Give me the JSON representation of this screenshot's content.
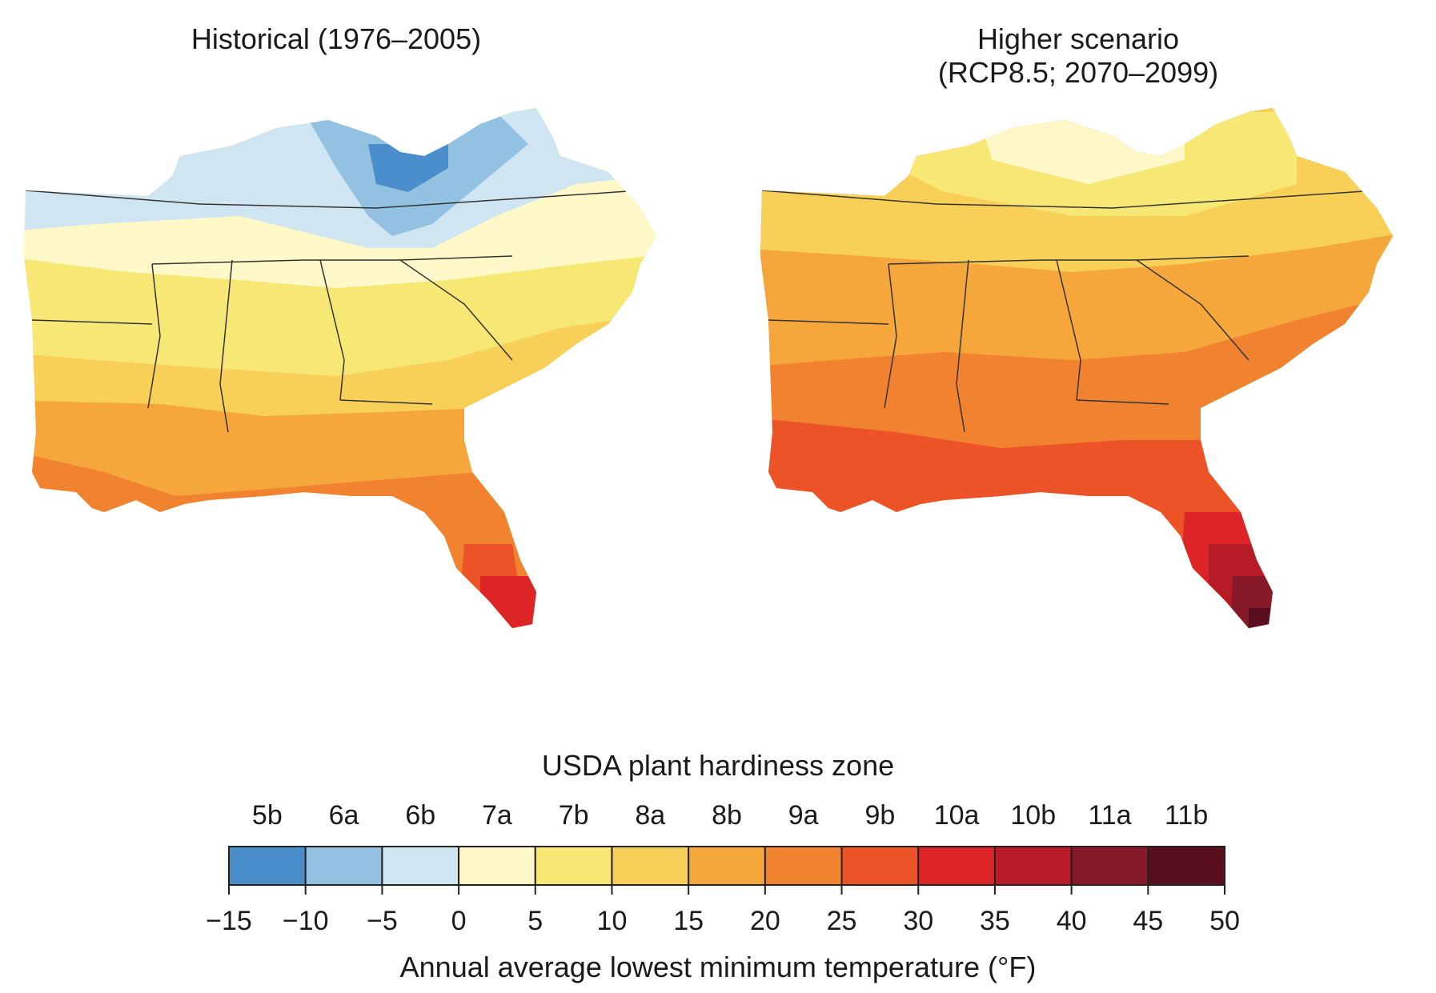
{
  "figure": {
    "left_panel_title": "Historical (1976–2005)",
    "right_panel_title": "Higher scenario\n(RCP8.5; 2070–2099)"
  },
  "legend": {
    "title": "USDA plant hardiness zone",
    "xlabel": "Annual average lowest minimum temperature (°F)",
    "zones": [
      {
        "label": "5b",
        "color": "#4a8fcb"
      },
      {
        "label": "6a",
        "color": "#92c1e2"
      },
      {
        "label": "6b",
        "color": "#cfe6f2"
      },
      {
        "label": "7a",
        "color": "#fff8c8"
      },
      {
        "label": "7b",
        "color": "#f7e775"
      },
      {
        "label": "8a",
        "color": "#f8cf57"
      },
      {
        "label": "8b",
        "color": "#f6a73b"
      },
      {
        "label": "9a",
        "color": "#f1822f"
      },
      {
        "label": "9b",
        "color": "#ec5428"
      },
      {
        "label": "10a",
        "color": "#dd2426"
      },
      {
        "label": "10b",
        "color": "#b71c26"
      },
      {
        "label": "11a",
        "color": "#871a29"
      },
      {
        "label": "11b",
        "color": "#5a0f1f"
      }
    ],
    "ticks": [
      "−15",
      "−10",
      "−5",
      "0",
      "5",
      "10",
      "15",
      "20",
      "25",
      "30",
      "35",
      "40",
      "45",
      "50"
    ]
  }
}
